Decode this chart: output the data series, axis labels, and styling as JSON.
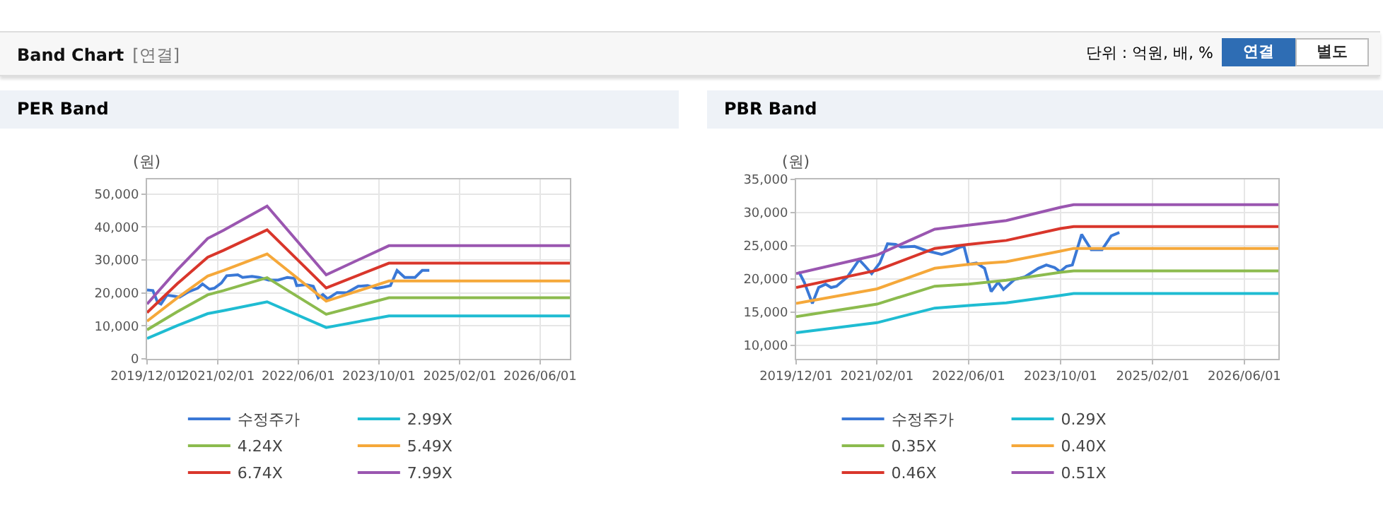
{
  "chart_data": [
    {
      "type": "line",
      "title": "PER Band",
      "ylabel": "(원)",
      "annotations": [
        "Band Chart",
        "[연결]",
        "단위 : 억원, 배, %",
        "연결",
        "별도"
      ],
      "x": [
        "2019-12-01",
        "2020-06-01",
        "2020-12-01",
        "2021-03-07",
        "2021-11-25",
        "2022-11-17",
        "2023-12-01",
        "2026-11-28"
      ],
      "series": [
        {
          "name": "수정주가",
          "color": "#3a78d6",
          "x": [
            "2019-12-01",
            "2020-01-05",
            "2020-02-03",
            "2020-02-23",
            "2020-03-30",
            "2020-05-12",
            "2020-06-15",
            "2020-08-06",
            "2020-10-02",
            "2020-10-31",
            "2020-12-12",
            "2021-01-10",
            "2021-02-22",
            "2021-03-26",
            "2021-06-01",
            "2021-06-30",
            "2021-08-26",
            "2021-10-08",
            "2021-12-04",
            "2022-01-31",
            "2022-03-27",
            "2022-05-09",
            "2022-05-23",
            "2022-07-19",
            "2022-08-31",
            "2022-09-30",
            "2022-10-28",
            "2022-11-26",
            "2023-01-22",
            "2023-03-19",
            "2023-05-29",
            "2023-07-25",
            "2023-09-21",
            "2023-11-03",
            "2023-12-10",
            "2024-01-19",
            "2024-03-05",
            "2024-05-07",
            "2024-06-19",
            "2024-08-01"
          ],
          "values": [
            20900,
            20700,
            17100,
            16600,
            19300,
            19000,
            18700,
            20300,
            21400,
            22700,
            21100,
            21400,
            23000,
            25200,
            25500,
            24700,
            25000,
            24700,
            23900,
            23900,
            24700,
            24400,
            22200,
            22500,
            22000,
            18500,
            19500,
            18200,
            20100,
            20000,
            22000,
            22200,
            21400,
            21800,
            22200,
            26800,
            24700,
            24700,
            26800,
            26800
          ]
        },
        {
          "name": "2.99X",
          "color": "#1fbcd2",
          "values": [
            6200,
            10100,
            13700,
            14600,
            17300,
            9500,
            13000,
            13000
          ]
        },
        {
          "name": "4.24X",
          "color": "#8cbb4e",
          "values": [
            8800,
            14300,
            19400,
            20700,
            24600,
            13500,
            18500,
            18500
          ]
        },
        {
          "name": "5.49X",
          "color": "#f5a83a",
          "values": [
            11400,
            18500,
            25100,
            26800,
            31800,
            17500,
            23600,
            23600
          ]
        },
        {
          "name": "6.74X",
          "color": "#d9362b",
          "values": [
            14000,
            22800,
            30800,
            32900,
            39100,
            21500,
            29000,
            29000
          ]
        },
        {
          "name": "7.99X",
          "color": "#9a56b0",
          "values": [
            16600,
            27000,
            36500,
            39000,
            46300,
            25500,
            34300,
            34300
          ]
        }
      ],
      "xlim": [
        "2019-12-01",
        "2026-11-28"
      ],
      "xticks": [
        {
          "value": "2019-12-01",
          "label": "2019/12/01"
        },
        {
          "value": "2021-02-01",
          "label": "2021/02/01"
        },
        {
          "value": "2022-06-01",
          "label": "2022/06/01"
        },
        {
          "value": "2023-10-01",
          "label": "2023/10/01"
        },
        {
          "value": "2025-02-01",
          "label": "2025/02/01"
        },
        {
          "value": "2026-06-01",
          "label": "2026/06/01"
        }
      ],
      "ylim": [
        0,
        54400
      ],
      "yticks": [
        0,
        {
          "value": 10000,
          "label": "10,000"
        },
        {
          "value": 20000,
          "label": "20,000"
        },
        {
          "value": 30000,
          "label": "30,000"
        },
        {
          "value": 40000,
          "label": "40,000"
        },
        {
          "value": 50000,
          "label": "50,000"
        }
      ],
      "grid": true,
      "legend": "bottom",
      "marker": "none",
      "line_style": "solid"
    },
    {
      "type": "line",
      "title": "PBR Band",
      "ylabel": "(원)",
      "x": [
        "2019-12-01",
        "2021-02-01",
        "2021-12-04",
        "2022-06-01",
        "2022-12-18",
        "2023-10-01",
        "2023-12-10",
        "2026-11-28"
      ],
      "series": [
        {
          "name": "수정주가",
          "color": "#3a78d6",
          "x": [
            "2019-12-15",
            "2020-01-13",
            "2020-02-25",
            "2020-03-29",
            "2020-05-05",
            "2020-06-03",
            "2020-07-02",
            "2020-08-28",
            "2020-10-30",
            "2020-12-01",
            "2021-01-04",
            "2021-02-16",
            "2021-03-29",
            "2021-05-11",
            "2021-06-09",
            "2021-08-19",
            "2021-10-16",
            "2022-01-10",
            "2022-02-22",
            "2022-04-19",
            "2022-05-08",
            "2022-06-01",
            "2022-07-13",
            "2022-08-25",
            "2022-09-29",
            "2022-11-05",
            "2022-12-03",
            "2023-01-30",
            "2023-03-26",
            "2023-06-06",
            "2023-07-18",
            "2023-08-31",
            "2023-09-29",
            "2023-11-02",
            "2023-12-03",
            "2024-01-21",
            "2024-03-12",
            "2024-05-08",
            "2024-06-26",
            "2024-08-08"
          ],
          "values": [
            21100,
            19500,
            16300,
            18700,
            19200,
            18700,
            18900,
            20300,
            22900,
            21900,
            20800,
            22400,
            25300,
            25200,
            24800,
            24900,
            24300,
            23700,
            24100,
            24800,
            24900,
            22200,
            22400,
            21600,
            18100,
            19500,
            18400,
            19900,
            20300,
            21600,
            22100,
            21700,
            21100,
            21900,
            22100,
            26700,
            24400,
            24400,
            26500,
            27000
          ]
        },
        {
          "name": "0.29X",
          "color": "#1fbcd2",
          "values": [
            11900,
            13400,
            15600,
            16000,
            16400,
            17500,
            17800,
            17800
          ]
        },
        {
          "name": "0.35X",
          "color": "#8cbb4e",
          "values": [
            14300,
            16200,
            18900,
            19200,
            19800,
            21000,
            21200,
            21200
          ]
        },
        {
          "name": "0.40X",
          "color": "#f5a83a",
          "values": [
            16300,
            18500,
            21600,
            22200,
            22600,
            24200,
            24600,
            24600
          ]
        },
        {
          "name": "0.46X",
          "color": "#d9362b",
          "values": [
            18700,
            21300,
            24600,
            25200,
            25800,
            27600,
            27900,
            27900
          ]
        },
        {
          "name": "0.51X",
          "color": "#9a56b0",
          "values": [
            20800,
            23600,
            27500,
            28100,
            28800,
            30800,
            31200,
            31200
          ]
        }
      ],
      "xlim": [
        "2019-12-01",
        "2026-11-28"
      ],
      "xticks": [
        {
          "value": "2019-12-01",
          "label": "2019/12/01"
        },
        {
          "value": "2021-02-01",
          "label": "2021/02/01"
        },
        {
          "value": "2022-06-01",
          "label": "2022/06/01"
        },
        {
          "value": "2023-10-01",
          "label": "2023/10/01"
        },
        {
          "value": "2025-02-01",
          "label": "2025/02/01"
        },
        {
          "value": "2026-06-01",
          "label": "2026/06/01"
        }
      ],
      "ylim": [
        7950,
        35000
      ],
      "yticks": [
        {
          "value": 10000,
          "label": "10,000"
        },
        {
          "value": 15000,
          "label": "15,000"
        },
        {
          "value": 20000,
          "label": "20,000"
        },
        {
          "value": 25000,
          "label": "25,000"
        },
        {
          "value": 30000,
          "label": "30,000"
        },
        {
          "value": 35000,
          "label": "35,000"
        }
      ],
      "grid": true,
      "legend": "bottom",
      "marker": "none",
      "line_style": "solid"
    }
  ]
}
